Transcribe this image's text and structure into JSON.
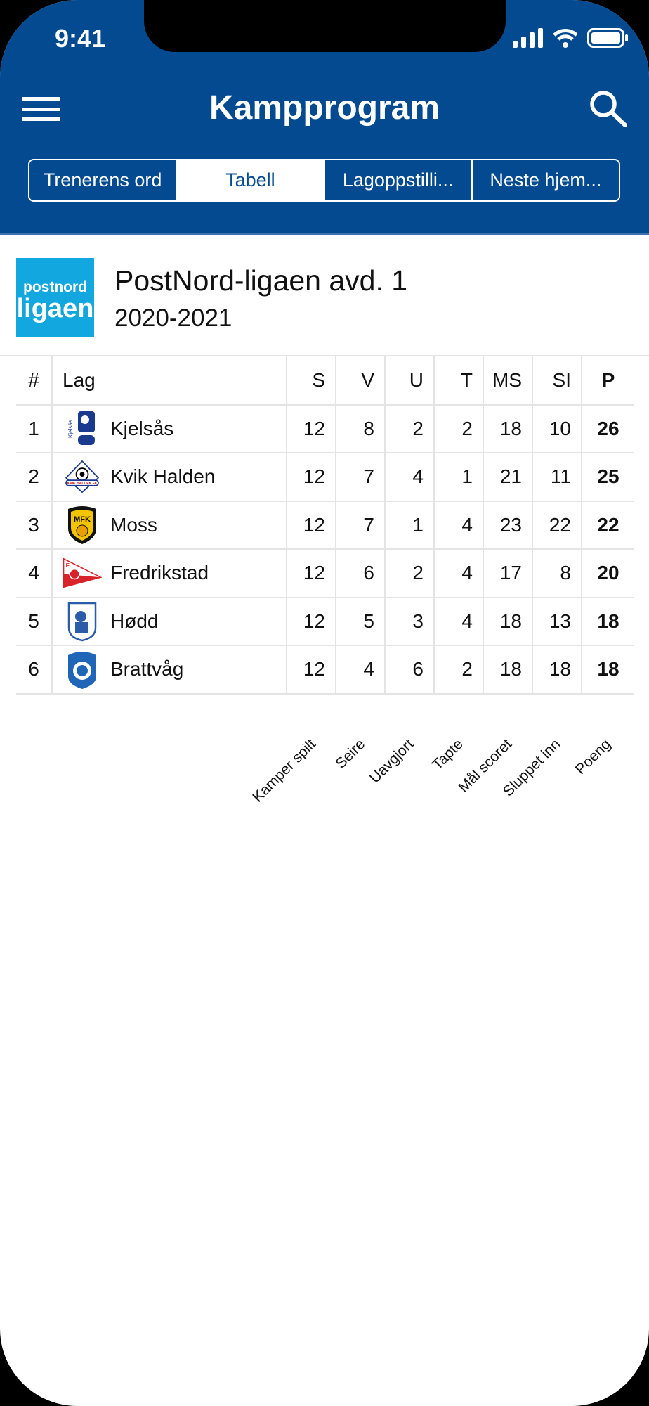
{
  "status_bar": {
    "time": "9:41"
  },
  "header": {
    "title": "Kampprogram"
  },
  "tabs": [
    {
      "label": "Trenerens ord",
      "active": false
    },
    {
      "label": "Tabell",
      "active": true
    },
    {
      "label": "Lagoppstilli...",
      "active": false
    },
    {
      "label": "Neste hjem...",
      "active": false
    }
  ],
  "league": {
    "logo_text": [
      "postnord",
      "ligaen"
    ],
    "name": "PostNord-ligaen avd. 1",
    "season": "2020-2021",
    "logo_color": "#12a7df"
  },
  "colors": {
    "primary": "#034a91"
  },
  "table": {
    "headers": [
      "#",
      "Lag",
      "S",
      "V",
      "U",
      "T",
      "MS",
      "SI",
      "P"
    ],
    "rows": [
      {
        "pos": "1",
        "team": "Kjelsås",
        "crest": "kjelsas-crest",
        "S": "12",
        "V": "8",
        "U": "2",
        "T": "2",
        "MS": "18",
        "SI": "10",
        "P": "26"
      },
      {
        "pos": "2",
        "team": "Kvik Halden",
        "crest": "kvik-halden-crest",
        "S": "12",
        "V": "7",
        "U": "4",
        "T": "1",
        "MS": "21",
        "SI": "11",
        "P": "25"
      },
      {
        "pos": "3",
        "team": "Moss",
        "crest": "moss-crest",
        "S": "12",
        "V": "7",
        "U": "1",
        "T": "4",
        "MS": "23",
        "SI": "22",
        "P": "22"
      },
      {
        "pos": "4",
        "team": "Fredrikstad",
        "crest": "fredrikstad-crest",
        "S": "12",
        "V": "6",
        "U": "2",
        "T": "4",
        "MS": "17",
        "SI": "8",
        "P": "20"
      },
      {
        "pos": "5",
        "team": "Hødd",
        "crest": "hodd-crest",
        "S": "12",
        "V": "5",
        "U": "3",
        "T": "4",
        "MS": "18",
        "SI": "13",
        "P": "18"
      },
      {
        "pos": "6",
        "team": "Brattvåg",
        "crest": "brattvag-crest",
        "S": "12",
        "V": "4",
        "U": "6",
        "T": "2",
        "MS": "18",
        "SI": "18",
        "P": "18"
      }
    ],
    "legend": [
      "Kamper spilt",
      "Seire",
      "Uavgjort",
      "Tapte",
      "Mål scoret",
      "Sluppet inn",
      "Poeng"
    ]
  }
}
